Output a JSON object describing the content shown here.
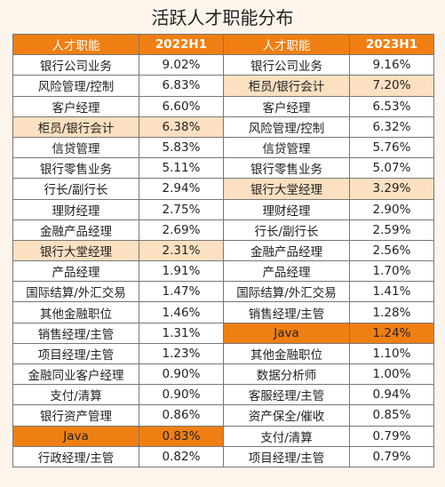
{
  "title": "活跃人才职能分布",
  "header": {
    "role_col_left": "人才职能",
    "period_left": "2022H1",
    "role_col_right": "人才职能",
    "period_right": "2023H1"
  },
  "colors": {
    "header_bg": "#f07f13",
    "highlight_light": "#fbe0c1",
    "highlight_strong": "#f07f13"
  },
  "chart_data": {
    "type": "table",
    "title": "活跃人才职能分布",
    "columns": [
      "人才职能",
      "2022H1",
      "人才职能",
      "2023H1"
    ],
    "left": [
      {
        "role": "银行公司业务",
        "value": "9.02%",
        "hl": ""
      },
      {
        "role": "风险管理/控制",
        "value": "6.83%",
        "hl": ""
      },
      {
        "role": "客户经理",
        "value": "6.60%",
        "hl": ""
      },
      {
        "role": "柜员/银行会计",
        "value": "6.38%",
        "hl": "light"
      },
      {
        "role": "信贷管理",
        "value": "5.83%",
        "hl": ""
      },
      {
        "role": "银行零售业务",
        "value": "5.11%",
        "hl": ""
      },
      {
        "role": "行长/副行长",
        "value": "2.94%",
        "hl": ""
      },
      {
        "role": "理财经理",
        "value": "2.75%",
        "hl": ""
      },
      {
        "role": "金融产品经理",
        "value": "2.69%",
        "hl": ""
      },
      {
        "role": "银行大堂经理",
        "value": "2.31%",
        "hl": "light"
      },
      {
        "role": "产品经理",
        "value": "1.91%",
        "hl": ""
      },
      {
        "role": "国际结算/外汇交易",
        "value": "1.47%",
        "hl": ""
      },
      {
        "role": "其他金融职位",
        "value": "1.46%",
        "hl": ""
      },
      {
        "role": "销售经理/主管",
        "value": "1.31%",
        "hl": ""
      },
      {
        "role": "项目经理/主管",
        "value": "1.23%",
        "hl": ""
      },
      {
        "role": "金融同业客户经理",
        "value": "0.90%",
        "hl": ""
      },
      {
        "role": "支付/清算",
        "value": "0.90%",
        "hl": ""
      },
      {
        "role": "银行资产管理",
        "value": "0.86%",
        "hl": ""
      },
      {
        "role": "Java",
        "value": "0.83%",
        "hl": "strong"
      },
      {
        "role": "行政经理/主管",
        "value": "0.82%",
        "hl": ""
      }
    ],
    "right": [
      {
        "role": "银行公司业务",
        "value": "9.16%",
        "hl": ""
      },
      {
        "role": "柜员/银行会计",
        "value": "7.20%",
        "hl": "light"
      },
      {
        "role": "客户经理",
        "value": "6.53%",
        "hl": ""
      },
      {
        "role": "风险管理/控制",
        "value": "6.32%",
        "hl": ""
      },
      {
        "role": "信贷管理",
        "value": "5.76%",
        "hl": ""
      },
      {
        "role": "银行零售业务",
        "value": "5.07%",
        "hl": ""
      },
      {
        "role": "银行大堂经理",
        "value": "3.29%",
        "hl": "light"
      },
      {
        "role": "理财经理",
        "value": "2.90%",
        "hl": ""
      },
      {
        "role": "行长/副行长",
        "value": "2.59%",
        "hl": ""
      },
      {
        "role": "金融产品经理",
        "value": "2.56%",
        "hl": ""
      },
      {
        "role": "产品经理",
        "value": "1.70%",
        "hl": ""
      },
      {
        "role": "国际结算/外汇交易",
        "value": "1.41%",
        "hl": ""
      },
      {
        "role": "销售经理/主管",
        "value": "1.28%",
        "hl": ""
      },
      {
        "role": "Java",
        "value": "1.24%",
        "hl": "strong"
      },
      {
        "role": "其他金融职位",
        "value": "1.10%",
        "hl": ""
      },
      {
        "role": "数据分析师",
        "value": "1.00%",
        "hl": ""
      },
      {
        "role": "客服经理/主管",
        "value": "0.94%",
        "hl": ""
      },
      {
        "role": "资产保全/催收",
        "value": "0.85%",
        "hl": ""
      },
      {
        "role": "支付/清算",
        "value": "0.79%",
        "hl": ""
      },
      {
        "role": "项目经理/主管",
        "value": "0.79%",
        "hl": ""
      }
    ]
  }
}
